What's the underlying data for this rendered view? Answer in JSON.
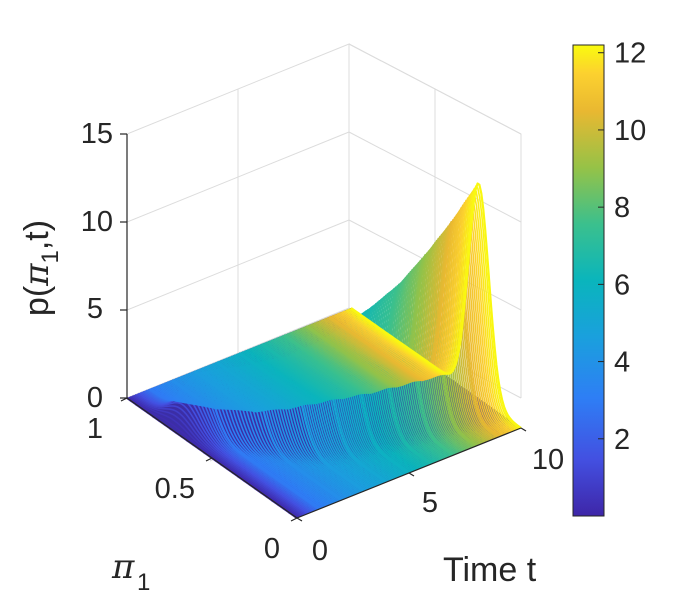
{
  "chart_data": {
    "type": "surface",
    "title": "",
    "xlabel": "Time t",
    "ylabel": "π",
    "ylabel_subscript": "1",
    "zlabel_parts": [
      "p(",
      "π",
      "1",
      ",t)"
    ],
    "x_range": [
      0,
      10
    ],
    "y_range": [
      0,
      1
    ],
    "z_range": [
      0,
      15
    ],
    "x_ticks": [
      0,
      5,
      10
    ],
    "y_ticks": [
      0,
      0.5,
      1
    ],
    "z_ticks": [
      0,
      5,
      10,
      15
    ],
    "colorbar": {
      "range": [
        0,
        12.2
      ],
      "ticks": [
        2,
        4,
        6,
        8,
        10,
        12
      ],
      "colormap": "parula"
    },
    "grid": true,
    "peak_value": 12.2,
    "surface_series": [
      {
        "t": 0.0,
        "peak_pi": 0.75,
        "peak_height": 0.0
      },
      {
        "t": 1.0,
        "peak_pi": 0.7,
        "peak_height": 2.9
      },
      {
        "t": 2.0,
        "peak_pi": 0.55,
        "peak_height": 3.8
      },
      {
        "t": 3.0,
        "peak_pi": 0.45,
        "peak_height": 4.5
      },
      {
        "t": 4.0,
        "peak_pi": 0.4,
        "peak_height": 5.1
      },
      {
        "t": 5.0,
        "peak_pi": 0.37,
        "peak_height": 5.8
      },
      {
        "t": 6.0,
        "peak_pi": 0.34,
        "peak_height": 6.6
      },
      {
        "t": 7.0,
        "peak_pi": 0.31,
        "peak_height": 7.6
      },
      {
        "t": 8.0,
        "peak_pi": 0.29,
        "peak_height": 8.9
      },
      {
        "t": 9.0,
        "peak_pi": 0.27,
        "peak_height": 10.4
      },
      {
        "t": 10.0,
        "peak_pi": 0.25,
        "peak_height": 12.2
      }
    ]
  }
}
